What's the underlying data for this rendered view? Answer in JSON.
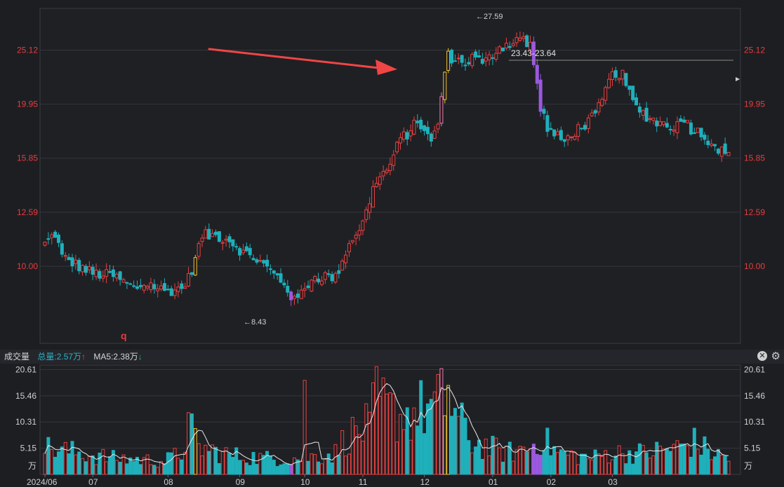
{
  "colors": {
    "up": "#e84040",
    "down": "#1fb0bb",
    "accent_yellow": "#f0c030",
    "accent_purple": "#9a59e0",
    "accent_pink": "#f07ab0",
    "ma": "#e8e8e8",
    "arrow": "#f04545",
    "grid": "#34363c",
    "price_label": "#e83c3c",
    "text": "#c8c8c8"
  },
  "volume_header": {
    "title": "成交量",
    "total_label": "总量:2.57万",
    "total_arrow": "↑",
    "ma5_label": "MA5:2.38万",
    "ma5_arrow": "↓",
    "close_icon": "close-icon",
    "settings_icon": "gear-icon"
  },
  "chart_data": [
    {
      "type": "candlestick",
      "y_ticks": [
        "25.12",
        "19.95",
        "15.85",
        "12.59",
        "10.00"
      ],
      "y_tick_values": [
        25.12,
        19.95,
        15.85,
        12.59,
        10.0
      ],
      "ylim": [
        7.2,
        30.0
      ],
      "log_scale": true,
      "grid": true,
      "high_annotation": "←27.59",
      "low_annotation": "←8.43",
      "range_annotation": "23.43-23.64",
      "marker_label": "q",
      "anchors": [
        [
          0,
          11.0
        ],
        [
          3,
          11.5
        ],
        [
          5,
          10.4
        ],
        [
          10,
          10.0
        ],
        [
          14,
          9.7
        ],
        [
          20,
          9.6
        ],
        [
          26,
          9.1
        ],
        [
          30,
          9.3
        ],
        [
          35,
          9.0
        ],
        [
          40,
          9.1
        ],
        [
          42,
          9.5
        ],
        [
          44,
          10.3
        ],
        [
          46,
          11.4
        ],
        [
          50,
          11.4
        ],
        [
          54,
          11.2
        ],
        [
          58,
          10.6
        ],
        [
          62,
          10.3
        ],
        [
          66,
          9.8
        ],
        [
          70,
          9.3
        ],
        [
          73,
          8.6
        ],
        [
          75,
          8.9
        ],
        [
          78,
          9.5
        ],
        [
          82,
          9.6
        ],
        [
          85,
          9.5
        ],
        [
          87,
          10.3
        ],
        [
          90,
          11.3
        ],
        [
          93,
          12.0
        ],
        [
          95,
          13.2
        ],
        [
          97,
          14.5
        ],
        [
          100,
          15.0
        ],
        [
          102,
          16.0
        ],
        [
          104,
          17.2
        ],
        [
          106,
          17.6
        ],
        [
          109,
          18.5
        ],
        [
          111,
          18.0
        ],
        [
          113,
          16.8
        ],
        [
          115,
          18.5
        ],
        [
          116,
          20.5
        ],
        [
          117,
          22.8
        ],
        [
          118,
          24.5
        ],
        [
          120,
          24.2
        ],
        [
          122,
          23.8
        ],
        [
          124,
          24.0
        ],
        [
          126,
          24.6
        ],
        [
          128,
          23.5
        ],
        [
          130,
          24.3
        ],
        [
          133,
          25.5
        ],
        [
          136,
          25.8
        ],
        [
          138,
          26.5
        ],
        [
          140,
          26.2
        ],
        [
          141,
          25.3
        ],
        [
          142,
          26.2
        ],
        [
          143,
          23.5
        ],
        [
          144,
          21.5
        ],
        [
          145,
          19.8
        ],
        [
          147,
          18.0
        ],
        [
          149,
          17.5
        ],
        [
          152,
          17.0
        ],
        [
          155,
          17.8
        ],
        [
          158,
          18.3
        ],
        [
          161,
          19.0
        ],
        [
          163,
          20.2
        ],
        [
          165,
          22.0
        ],
        [
          167,
          22.9
        ],
        [
          169,
          22.5
        ],
        [
          171,
          20.8
        ],
        [
          173,
          19.6
        ],
        [
          176,
          19.0
        ],
        [
          179,
          18.5
        ],
        [
          182,
          18.3
        ],
        [
          185,
          18.2
        ],
        [
          187,
          18.9
        ],
        [
          189,
          18.0
        ],
        [
          192,
          17.6
        ],
        [
          195,
          17.0
        ],
        [
          198,
          16.3
        ],
        [
          200,
          16.0
        ]
      ],
      "volume": {
        "y_ticks": [
          "20.61",
          "15.46",
          "10.31",
          "5.15"
        ],
        "y_tick_values": [
          20.61,
          15.46,
          10.31,
          5.15
        ],
        "unit_label": "万",
        "ylim": [
          0,
          21.5
        ],
        "anchors": [
          [
            0,
            5
          ],
          [
            10,
            4
          ],
          [
            20,
            3
          ],
          [
            35,
            2.5
          ],
          [
            40,
            4
          ],
          [
            42,
            9
          ],
          [
            45,
            5
          ],
          [
            55,
            3.5
          ],
          [
            65,
            3
          ],
          [
            75,
            3
          ],
          [
            85,
            4
          ],
          [
            88,
            7
          ],
          [
            95,
            9
          ],
          [
            97,
            14
          ],
          [
            100,
            12
          ],
          [
            105,
            11
          ],
          [
            110,
            12
          ],
          [
            116,
            13
          ],
          [
            118,
            14
          ],
          [
            120,
            11
          ],
          [
            125,
            6
          ],
          [
            135,
            4
          ],
          [
            142,
            5
          ],
          [
            145,
            7
          ],
          [
            150,
            4
          ],
          [
            160,
            3
          ],
          [
            165,
            4
          ],
          [
            175,
            4
          ],
          [
            185,
            5
          ],
          [
            190,
            6
          ],
          [
            195,
            4
          ],
          [
            200,
            3
          ]
        ],
        "ma_series_name": "MA5"
      },
      "x_ticks": [
        "2024/06",
        "07",
        "08",
        "09",
        "10",
        "11",
        "12",
        "01",
        "02",
        "03"
      ],
      "x_tick_index": [
        0,
        14,
        36,
        57,
        76,
        93,
        111,
        131,
        148,
        166
      ]
    }
  ]
}
